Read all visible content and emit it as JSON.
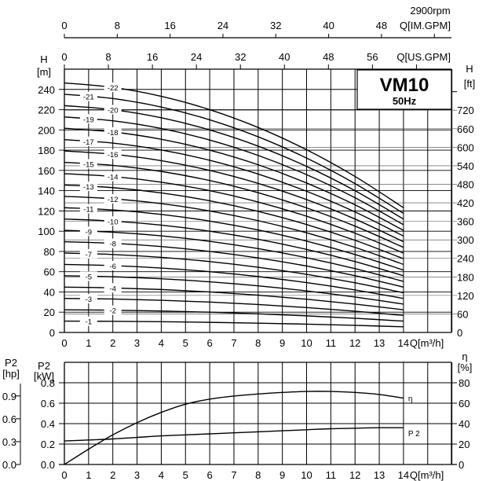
{
  "header": {
    "rpm": "2900rpm",
    "model": "VM10",
    "frequency": "50Hz"
  },
  "axes": {
    "im_gpm": {
      "label": "Q[IM.GPM]",
      "ticks": [
        0,
        8,
        16,
        24,
        32,
        40,
        48
      ]
    },
    "us_gpm": {
      "label": "Q[US.GPM]",
      "ticks": [
        0,
        8,
        16,
        24,
        32,
        40,
        48,
        56
      ]
    },
    "q_label": "Q[m³/h]",
    "q_ticks": [
      0,
      1,
      2,
      3,
      4,
      5,
      6,
      7,
      8,
      9,
      10,
      11,
      12,
      13,
      14
    ],
    "h_m": {
      "title": "H",
      "unit": "[m]",
      "ticks": [
        0,
        20,
        40,
        60,
        80,
        100,
        120,
        140,
        160,
        180,
        200,
        220,
        240
      ]
    },
    "h_ft": {
      "title": "H",
      "unit": "[ft]",
      "ticks": [
        0,
        60,
        120,
        180,
        240,
        300,
        360,
        420,
        480,
        540,
        600,
        660,
        720
      ]
    },
    "p2_hp": {
      "title": "P2",
      "unit": "[hp]",
      "ticks": [
        "0.0",
        "0.3",
        "0.6",
        "0.9"
      ]
    },
    "p2_kw": {
      "title": "P2",
      "unit": "[kW]",
      "ticks": [
        "0.0",
        "0.2",
        "0.4",
        "0.6",
        "0.8"
      ]
    },
    "eta": {
      "title": "η",
      "unit": "[%]",
      "ticks": [
        0,
        20,
        40,
        60,
        80
      ]
    }
  },
  "chart_data": [
    {
      "type": "line",
      "title": "VM10 50Hz 2900rpm - Head curves",
      "xlabel": "Q[m³/h]",
      "ylabel": "H [m]",
      "xlim": [
        0,
        16
      ],
      "ylim": [
        0,
        256
      ],
      "grid": true,
      "x": [
        0,
        2,
        4,
        6,
        8,
        10,
        12,
        14
      ],
      "series": [
        {
          "name": "1",
          "values": [
            11.2,
            11.0,
            10.6,
            10.0,
            9.2,
            8.2,
            7.0,
            5.6
          ]
        },
        {
          "name": "2",
          "values": [
            22.4,
            22.0,
            21.2,
            20.0,
            18.4,
            16.4,
            14.0,
            11.2
          ]
        },
        {
          "name": "3",
          "values": [
            33.6,
            33.0,
            31.8,
            30.0,
            27.6,
            24.6,
            21.0,
            16.8
          ]
        },
        {
          "name": "4",
          "values": [
            44.8,
            44.0,
            42.4,
            40.0,
            36.8,
            32.8,
            28.0,
            22.4
          ]
        },
        {
          "name": "5",
          "values": [
            56.0,
            55.0,
            53.0,
            50.0,
            46.0,
            41.0,
            35.0,
            28.0
          ]
        },
        {
          "name": "6",
          "values": [
            67.2,
            66.0,
            63.6,
            60.0,
            55.2,
            49.2,
            42.0,
            33.6
          ]
        },
        {
          "name": "7",
          "values": [
            78.4,
            77.0,
            74.2,
            70.0,
            64.4,
            57.4,
            49.0,
            39.2
          ]
        },
        {
          "name": "8",
          "values": [
            89.6,
            88.0,
            84.8,
            80.0,
            73.6,
            65.6,
            56.0,
            44.8
          ]
        },
        {
          "name": "9",
          "values": [
            100.8,
            99.0,
            95.4,
            90.0,
            82.8,
            73.8,
            63.0,
            50.4
          ]
        },
        {
          "name": "10",
          "values": [
            112.0,
            110.0,
            106.0,
            100.0,
            92.0,
            82.0,
            70.0,
            56.0
          ]
        },
        {
          "name": "11",
          "values": [
            123.2,
            121.0,
            116.6,
            110.0,
            101.2,
            90.2,
            77.0,
            61.6
          ]
        },
        {
          "name": "12",
          "values": [
            134.4,
            132.0,
            127.2,
            120.0,
            110.4,
            98.4,
            84.0,
            67.2
          ]
        },
        {
          "name": "13",
          "values": [
            145.6,
            143.0,
            137.8,
            130.0,
            119.6,
            106.6,
            91.0,
            72.8
          ]
        },
        {
          "name": "14",
          "values": [
            156.8,
            154.0,
            148.4,
            140.0,
            128.8,
            114.8,
            98.0,
            78.4
          ]
        },
        {
          "name": "15",
          "values": [
            168.0,
            165.0,
            159.0,
            150.0,
            138.0,
            123.0,
            105.0,
            84.0
          ]
        },
        {
          "name": "16",
          "values": [
            179.2,
            176.0,
            169.6,
            160.0,
            147.2,
            131.2,
            112.0,
            89.6
          ]
        },
        {
          "name": "17",
          "values": [
            190.4,
            187.0,
            180.2,
            170.0,
            156.4,
            139.4,
            119.0,
            95.2
          ]
        },
        {
          "name": "18",
          "values": [
            201.6,
            198.0,
            190.8,
            180.0,
            165.6,
            147.6,
            126.0,
            100.8
          ]
        },
        {
          "name": "19",
          "values": [
            212.8,
            209.0,
            201.4,
            190.0,
            174.8,
            155.8,
            133.0,
            106.4
          ]
        },
        {
          "name": "20",
          "values": [
            224.0,
            220.0,
            212.0,
            200.0,
            184.0,
            164.0,
            140.0,
            112.0
          ]
        },
        {
          "name": "21",
          "values": [
            235.2,
            231.0,
            222.6,
            210.0,
            193.2,
            172.2,
            147.0,
            117.6
          ]
        },
        {
          "name": "22",
          "values": [
            246.4,
            242.0,
            233.2,
            220.0,
            202.4,
            180.4,
            154.0,
            123.2
          ]
        }
      ]
    },
    {
      "type": "line",
      "title": "Power and efficiency",
      "xlabel": "Q[m³/h]",
      "ylabel": "P2 [kW]",
      "y2label": "η [%]",
      "xlim": [
        0,
        16
      ],
      "ylim": [
        0,
        0.9
      ],
      "y2lim": [
        0,
        90
      ],
      "grid": true,
      "x": [
        0,
        1,
        2,
        3,
        4,
        5,
        6,
        7,
        8,
        9,
        10,
        11,
        12,
        13,
        14
      ],
      "series": [
        {
          "name": "P2",
          "axis": "kW",
          "values": [
            0.23,
            0.24,
            0.25,
            0.265,
            0.28,
            0.29,
            0.3,
            0.31,
            0.32,
            0.33,
            0.34,
            0.35,
            0.355,
            0.36,
            0.36
          ]
        },
        {
          "name": "η",
          "axis": "%",
          "values": [
            0,
            15,
            29,
            41,
            51,
            59,
            64,
            67,
            69,
            70.5,
            71.5,
            71.5,
            70.5,
            68.5,
            65
          ]
        }
      ]
    }
  ]
}
